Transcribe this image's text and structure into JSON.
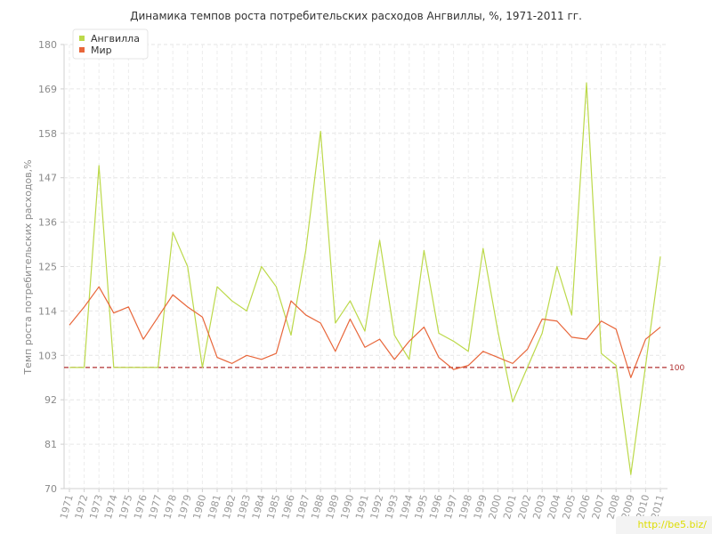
{
  "chart_data": {
    "type": "line",
    "title": "Динамика темпов роста потребительских расходов Ангвиллы, %, 1971-2011 гг.",
    "ylabel": "Темп роста потребительских расходов,%",
    "xlabel": "",
    "ylim": [
      70,
      180
    ],
    "yticks": [
      70,
      81,
      92,
      103,
      114,
      125,
      136,
      147,
      158,
      169,
      180
    ],
    "grid": true,
    "legend_position": "top-left",
    "reference_line": {
      "value": 100,
      "label": "100",
      "color": "#b03030"
    },
    "categories": [
      "1971",
      "1972",
      "1973",
      "1974",
      "1975",
      "1976",
      "1977",
      "1978",
      "1979",
      "1980",
      "1981",
      "1982",
      "1983",
      "1984",
      "1985",
      "1986",
      "1987",
      "1988",
      "1989",
      "1990",
      "1991",
      "1992",
      "1993",
      "1994",
      "1995",
      "1996",
      "1997",
      "1998",
      "1999",
      "2000",
      "2001",
      "2002",
      "2003",
      "2004",
      "2005",
      "2006",
      "2007",
      "2008",
      "2009",
      "2010",
      "2011"
    ],
    "series": [
      {
        "name": "Ангвилла",
        "color": "#bcd94a",
        "values": [
          100,
          100,
          150,
          100,
          100,
          100,
          100,
          133.5,
          125,
          100,
          120,
          116.5,
          114,
          125,
          120,
          108,
          129,
          158.5,
          111,
          116.5,
          109,
          131.5,
          108,
          102,
          129,
          108.5,
          106.5,
          104,
          129.5,
          109,
          91.5,
          100,
          108.5,
          125,
          113,
          170.5,
          103.5,
          100.5,
          73.5,
          100.5,
          127.5
        ]
      },
      {
        "name": "Мир",
        "color": "#e8663a",
        "values": [
          110.5,
          115,
          120,
          113.5,
          115,
          107,
          112.5,
          118,
          115,
          112.5,
          102.5,
          101,
          103,
          102,
          103.5,
          116.5,
          113,
          111,
          104,
          112,
          105,
          107,
          102,
          106.5,
          110,
          102.5,
          99.5,
          100.5,
          104,
          102.5,
          101,
          104.5,
          112,
          111.5,
          107.5,
          107,
          111.5,
          109.5,
          97.5,
          107,
          110
        ]
      }
    ]
  },
  "watermark": {
    "text": "http://be5.biz/"
  }
}
